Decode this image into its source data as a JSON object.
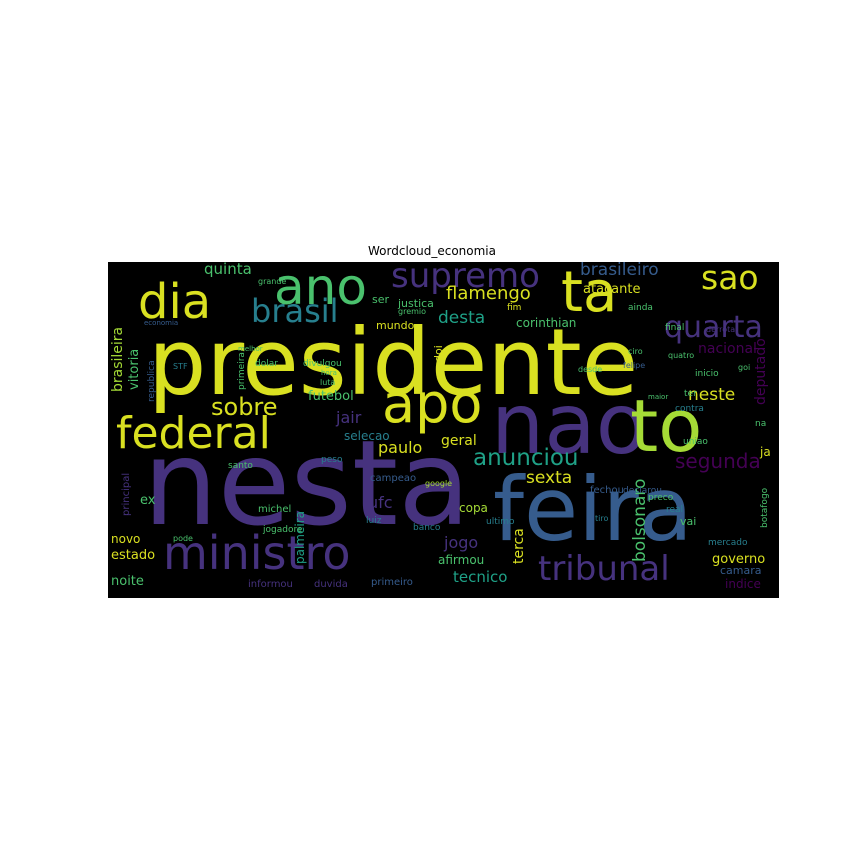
{
  "title": "Wordcloud_economia",
  "colors": {
    "yellow": "#d9e021",
    "lime": "#a5db36",
    "green": "#4ac16d",
    "teal": "#1fa187",
    "cyan": "#277f8e",
    "blue": "#365c8d",
    "indigo": "#46327e",
    "purple": "#440154",
    "background": "#000000"
  },
  "words": [
    {
      "text": "presidente",
      "c": "yellow"
    },
    {
      "text": "nesta",
      "c": "indigo"
    },
    {
      "text": "feira",
      "c": "blue"
    },
    {
      "text": "nao",
      "c": "indigo"
    },
    {
      "text": "to",
      "c": "lime"
    },
    {
      "text": "ministro",
      "c": "indigo"
    },
    {
      "text": "dia",
      "c": "yellow"
    },
    {
      "text": "ano",
      "c": "green"
    },
    {
      "text": "ta",
      "c": "yellow"
    },
    {
      "text": "apo",
      "c": "yellow"
    },
    {
      "text": "federal",
      "c": "yellow"
    },
    {
      "text": "supremo",
      "c": "indigo"
    },
    {
      "text": "sao",
      "c": "yellow"
    },
    {
      "text": "brasil",
      "c": "cyan"
    },
    {
      "text": "quarta",
      "c": "indigo"
    },
    {
      "text": "tribunal",
      "c": "indigo"
    },
    {
      "text": "sobre",
      "c": "yellow"
    },
    {
      "text": "anunciou",
      "c": "teal"
    },
    {
      "text": "segunda",
      "c": "purple"
    },
    {
      "text": "bolsonaro",
      "c": "green"
    },
    {
      "text": "flamengo",
      "c": "yellow"
    },
    {
      "text": "brasileiro",
      "c": "blue"
    },
    {
      "text": "quinta",
      "c": "green"
    },
    {
      "text": "desta",
      "c": "teal"
    },
    {
      "text": "neste",
      "c": "yellow"
    },
    {
      "text": "sexta",
      "c": "yellow"
    },
    {
      "text": "paulo",
      "c": "yellow"
    },
    {
      "text": "jair",
      "c": "indigo"
    },
    {
      "text": "futebol",
      "c": "green"
    },
    {
      "text": "selecao",
      "c": "cyan"
    },
    {
      "text": "geral",
      "c": "yellow"
    },
    {
      "text": "ufc",
      "c": "indigo"
    },
    {
      "text": "jogo",
      "c": "indigo"
    },
    {
      "text": "terca",
      "c": "yellow"
    },
    {
      "text": "tecnico",
      "c": "teal"
    },
    {
      "text": "copa",
      "c": "lime"
    },
    {
      "text": "nacional",
      "c": "purple"
    },
    {
      "text": "deputado",
      "c": "purple"
    },
    {
      "text": "corinthian",
      "c": "green"
    },
    {
      "text": "brasileira",
      "c": "lime"
    },
    {
      "text": "vitoria",
      "c": "green"
    },
    {
      "text": "atacante",
      "c": "yellow"
    },
    {
      "text": "justica",
      "c": "green"
    },
    {
      "text": "mundo",
      "c": "yellow"
    },
    {
      "text": "governo",
      "c": "yellow"
    },
    {
      "text": "estado",
      "c": "yellow"
    },
    {
      "text": "novo",
      "c": "yellow"
    },
    {
      "text": "noite",
      "c": "green"
    },
    {
      "text": "ex",
      "c": "green"
    },
    {
      "text": "michel",
      "c": "green"
    },
    {
      "text": "palmeira",
      "c": "teal"
    },
    {
      "text": "afirmou",
      "c": "green"
    },
    {
      "text": "campeao",
      "c": "blue"
    },
    {
      "text": "primeiro",
      "c": "blue"
    },
    {
      "text": "informou",
      "c": "indigo"
    },
    {
      "text": "duvida",
      "c": "indigo"
    },
    {
      "text": "indice",
      "c": "purple"
    },
    {
      "text": "camara",
      "c": "blue"
    },
    {
      "text": "ja",
      "c": "yellow"
    },
    {
      "text": "vai",
      "c": "green"
    },
    {
      "text": "ser",
      "c": "green"
    },
    {
      "text": "doi",
      "c": "yellow"
    },
    {
      "text": "fechou",
      "c": "blue"
    },
    {
      "text": "principal",
      "c": "indigo"
    },
    {
      "text": "republica",
      "c": "blue"
    },
    {
      "text": "dolar",
      "c": "green"
    },
    {
      "text": "divulgou",
      "c": "green"
    },
    {
      "text": "primeira",
      "c": "green"
    },
    {
      "text": "santo",
      "c": "green"
    },
    {
      "text": "peso",
      "c": "cyan"
    },
    {
      "text": "jogadore",
      "c": "green"
    },
    {
      "text": "luiz",
      "c": "cyan"
    },
    {
      "text": "banco",
      "c": "cyan"
    },
    {
      "text": "ultimo",
      "c": "cyan"
    },
    {
      "text": "fim",
      "c": "yellow"
    },
    {
      "text": "ainda",
      "c": "green"
    },
    {
      "text": "final",
      "c": "green"
    },
    {
      "text": "preco",
      "c": "green"
    },
    {
      "text": "contra",
      "c": "cyan"
    },
    {
      "text": "mercado",
      "c": "cyan"
    },
    {
      "text": "botafogo",
      "c": "green"
    },
    {
      "text": "declarou",
      "c": "blue"
    },
    {
      "text": "grande",
      "c": "green"
    },
    {
      "text": "gremio",
      "c": "green"
    },
    {
      "text": "ter",
      "c": "green"
    },
    {
      "text": "uniao",
      "c": "green"
    },
    {
      "text": "inicio",
      "c": "green"
    },
    {
      "text": "desde",
      "c": "green"
    },
    {
      "text": "real",
      "c": "cyan"
    },
    {
      "text": "maior",
      "c": "green"
    },
    {
      "text": "quatro",
      "c": "green"
    },
    {
      "text": "derrota",
      "c": "indigo"
    },
    {
      "text": "economia",
      "c": "blue"
    },
    {
      "text": "melhor",
      "c": "green"
    },
    {
      "text": "luta",
      "c": "green"
    },
    {
      "text": "hora",
      "c": "green"
    },
    {
      "text": "google",
      "c": "lime"
    },
    {
      "text": "ciro",
      "c": "green"
    },
    {
      "text": "felipe",
      "c": "blue"
    },
    {
      "text": "tiro",
      "c": "cyan"
    },
    {
      "text": "goi",
      "c": "green"
    },
    {
      "text": "pode",
      "c": "green"
    },
    {
      "text": "na",
      "c": "green"
    },
    {
      "text": "STF",
      "c": "cyan"
    }
  ]
}
